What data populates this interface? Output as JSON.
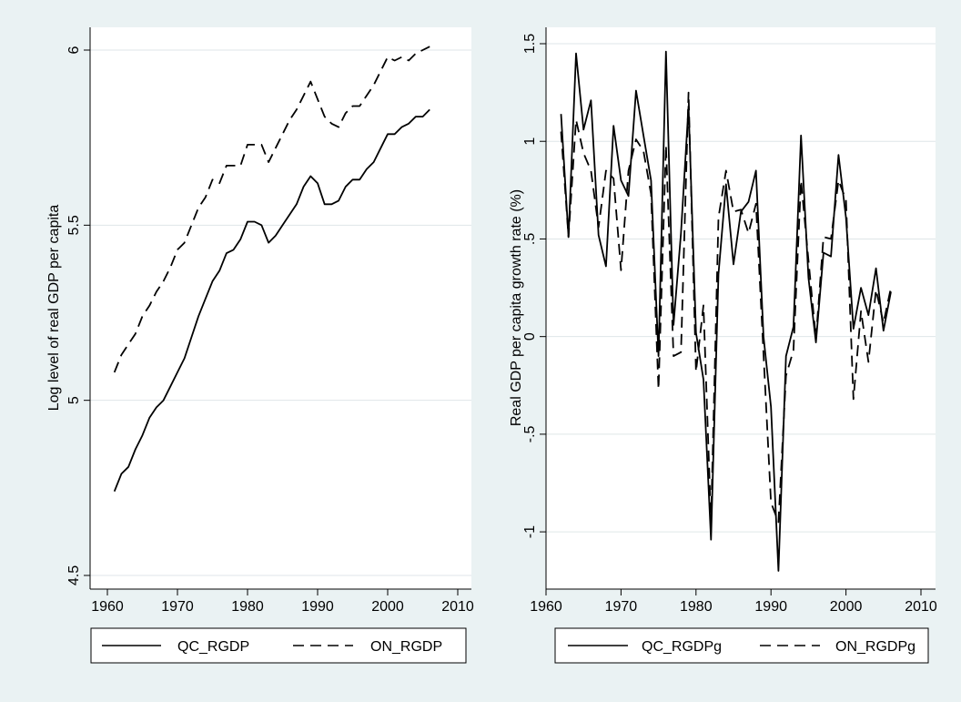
{
  "chart_data": [
    {
      "type": "line",
      "ylabel": "Log level of real GDP per capita",
      "ylim": [
        4.5,
        6.0
      ],
      "yticks": [
        "4.5",
        "5",
        "5.5",
        "6"
      ],
      "yticks_values": [
        4.5,
        5.0,
        5.5,
        6.0
      ],
      "xlim": [
        1960,
        2010
      ],
      "xticks": [
        "1960",
        "1970",
        "1980",
        "1990",
        "2000",
        "2010"
      ],
      "xticks_values": [
        1960,
        1970,
        1980,
        1990,
        2000,
        2010
      ],
      "grid": true,
      "legend": "bottom",
      "x": [
        1961,
        1962,
        1963,
        1964,
        1965,
        1966,
        1967,
        1968,
        1969,
        1970,
        1971,
        1972,
        1973,
        1974,
        1975,
        1976,
        1977,
        1978,
        1979,
        1980,
        1981,
        1982,
        1983,
        1984,
        1985,
        1986,
        1987,
        1988,
        1989,
        1990,
        1991,
        1992,
        1993,
        1994,
        1995,
        1996,
        1997,
        1998,
        1999,
        2000,
        2001,
        2002,
        2003,
        2004,
        2005,
        2006
      ],
      "series": [
        {
          "name": "QC_RGDP",
          "style": "solid",
          "values": [
            4.74,
            4.79,
            4.81,
            4.86,
            4.9,
            4.95,
            4.98,
            5.0,
            5.04,
            5.08,
            5.12,
            5.18,
            5.24,
            5.29,
            5.34,
            5.37,
            5.42,
            5.43,
            5.46,
            5.51,
            5.51,
            5.5,
            5.45,
            5.47,
            5.5,
            5.53,
            5.56,
            5.61,
            5.64,
            5.62,
            5.56,
            5.56,
            5.57,
            5.61,
            5.63,
            5.63,
            5.66,
            5.68,
            5.72,
            5.76,
            5.76,
            5.78,
            5.79,
            5.81,
            5.81,
            5.83
          ]
        },
        {
          "name": "ON_RGDP",
          "style": "dashed",
          "values": [
            5.08,
            5.13,
            5.16,
            5.19,
            5.24,
            5.27,
            5.31,
            5.34,
            5.38,
            5.43,
            5.45,
            5.5,
            5.55,
            5.58,
            5.63,
            5.62,
            5.67,
            5.67,
            5.67,
            5.73,
            5.73,
            5.73,
            5.68,
            5.72,
            5.76,
            5.8,
            5.83,
            5.87,
            5.91,
            5.86,
            5.81,
            5.79,
            5.78,
            5.82,
            5.84,
            5.84,
            5.87,
            5.9,
            5.94,
            5.98,
            5.97,
            5.98,
            5.97,
            5.99,
            6.0,
            6.01
          ]
        }
      ]
    },
    {
      "type": "line",
      "ylabel": "Real GDP per capita growth rate (%)",
      "ylim": [
        -1.2,
        1.5
      ],
      "yticks": [
        "-1",
        "-.5",
        "0",
        ".5",
        "1",
        "1.5"
      ],
      "yticks_values": [
        -1.0,
        -0.5,
        0.0,
        0.5,
        1.0,
        1.5
      ],
      "xlim": [
        1960,
        2010
      ],
      "xticks": [
        "1960",
        "1970",
        "1980",
        "1990",
        "2000",
        "2010"
      ],
      "xticks_values": [
        1960,
        1970,
        1980,
        1990,
        2000,
        2010
      ],
      "grid": true,
      "legend": "bottom",
      "x": [
        1962,
        1963,
        1964,
        1965,
        1966,
        1967,
        1968,
        1969,
        1970,
        1971,
        1972,
        1973,
        1974,
        1975,
        1976,
        1977,
        1978,
        1979,
        1980,
        1981,
        1982,
        1983,
        1984,
        1985,
        1986,
        1987,
        1988,
        1989,
        1990,
        1991,
        1992,
        1993,
        1994,
        1995,
        1996,
        1997,
        1998,
        1999,
        2000,
        2001,
        2002,
        2003,
        2004,
        2005,
        2006
      ],
      "series": [
        {
          "name": "QC_RGDPg",
          "style": "solid",
          "values": [
            1.14,
            0.51,
            1.45,
            1.06,
            1.21,
            0.52,
            0.36,
            1.08,
            0.8,
            0.72,
            1.26,
            1.03,
            0.8,
            -0.1,
            1.46,
            0.06,
            0.53,
            1.18,
            0.02,
            -0.22,
            -1.04,
            0.32,
            0.78,
            0.37,
            0.64,
            0.69,
            0.85,
            0.0,
            -0.36,
            -1.2,
            -0.1,
            0.05,
            1.03,
            0.3,
            -0.03,
            0.43,
            0.41,
            0.93,
            0.61,
            0.04,
            0.25,
            0.11,
            0.35,
            0.03,
            0.23
          ]
        },
        {
          "name": "ON_RGDPg",
          "style": "dashed",
          "values": [
            1.05,
            0.51,
            1.11,
            0.94,
            0.85,
            0.56,
            0.85,
            0.81,
            0.34,
            0.85,
            1.01,
            0.95,
            0.73,
            -0.27,
            0.98,
            -0.1,
            -0.08,
            1.25,
            -0.18,
            0.16,
            -0.95,
            0.61,
            0.85,
            0.64,
            0.65,
            0.53,
            0.68,
            -0.09,
            -0.85,
            -0.95,
            -0.2,
            -0.07,
            0.8,
            0.39,
            -0.01,
            0.51,
            0.5,
            0.8,
            0.7,
            -0.32,
            0.13,
            -0.13,
            0.24,
            0.07,
            0.25
          ]
        }
      ]
    }
  ]
}
